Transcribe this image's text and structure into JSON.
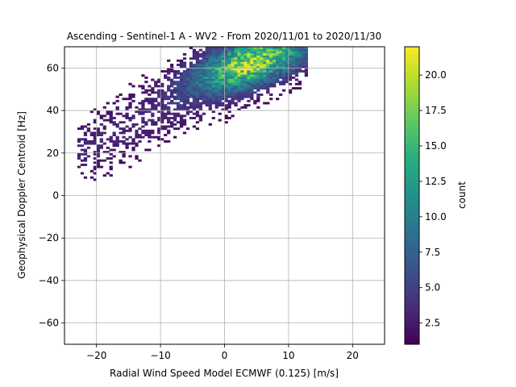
{
  "chart_data": {
    "type": "heatmap",
    "title": "Ascending - Sentinel-1 A - WV2 - From 2020/11/01 to 2020/11/30",
    "xlabel": "Radial Wind Speed Model ECMWF (0.125) [m/s]",
    "ylabel": "Geophysical Doppler Centroid [Hz]",
    "xlim": [
      -25,
      25
    ],
    "ylim": [
      -70,
      70
    ],
    "xticks": [
      -20,
      -10,
      0,
      10,
      20
    ],
    "xtick_labels": [
      "−20",
      "−10",
      "0",
      "10",
      "20"
    ],
    "yticks": [
      -60,
      -40,
      -20,
      0,
      20,
      40,
      60
    ],
    "ytick_labels": [
      "−60",
      "−40",
      "−20",
      "0",
      "20",
      "40",
      "60"
    ],
    "grid": true,
    "colorbar": {
      "label": "count",
      "colormap": "viridis",
      "range": [
        1,
        22
      ],
      "ticks": [
        2.5,
        5.0,
        7.5,
        10.0,
        12.5,
        15.0,
        17.5,
        20.0
      ],
      "tick_labels": [
        "2.5",
        "5.0",
        "7.5",
        "10.0",
        "12.5",
        "15.0",
        "17.5",
        "20.0"
      ]
    },
    "bins": {
      "x_width": 0.5,
      "y_width": 1.0
    },
    "density_model": {
      "description": "2D histogram of counts; points concentrated along a band from (-15, 25) to (8, 70)",
      "center_slope": 1.5,
      "center_intercept": 55,
      "peak_x": 3,
      "peak_y": 65,
      "peak_count": 22
    }
  }
}
